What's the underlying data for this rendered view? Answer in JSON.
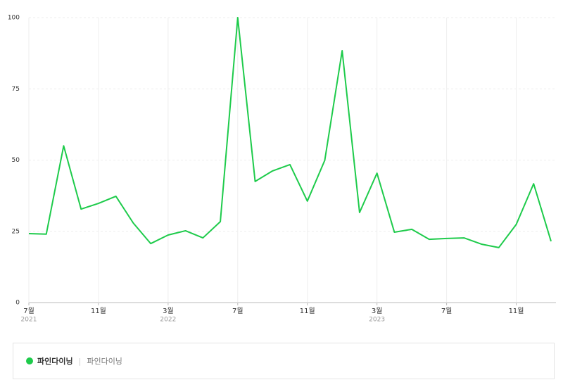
{
  "chart_data": {
    "type": "line",
    "categories": [
      "7월",
      null,
      null,
      null,
      "11월",
      null,
      null,
      null,
      "3월",
      null,
      null,
      null,
      "7월",
      null,
      null,
      null,
      "11월",
      null,
      null,
      null,
      "3월",
      null,
      null,
      null,
      "7월",
      null,
      null,
      null,
      "11월",
      null,
      null
    ],
    "year_labels": [
      "2021",
      null,
      null,
      null,
      null,
      null,
      null,
      null,
      "2022",
      null,
      null,
      null,
      null,
      null,
      null,
      null,
      null,
      null,
      null,
      null,
      "2023",
      null,
      null,
      null,
      null,
      null,
      null,
      null,
      null,
      null,
      null
    ],
    "series": [
      {
        "name": "파인다이닝",
        "color": "#1ecb4b",
        "values": [
          24.2,
          24,
          55,
          32.8,
          34.8,
          37.3,
          27.9,
          20.7,
          23.7,
          25.2,
          22.7,
          28.4,
          100,
          42.5,
          46.2,
          48.4,
          35.6,
          49.9,
          88.4,
          31.6,
          45.4,
          24.7,
          25.7,
          22.2,
          22.5,
          22.7,
          20.5,
          19.3,
          27.4,
          41.7,
          21.5
        ]
      }
    ],
    "keywords": "파인다이닝",
    "ylim": [
      0,
      100
    ],
    "yticks": [
      0,
      25,
      50,
      75,
      100
    ],
    "grid": true
  }
}
